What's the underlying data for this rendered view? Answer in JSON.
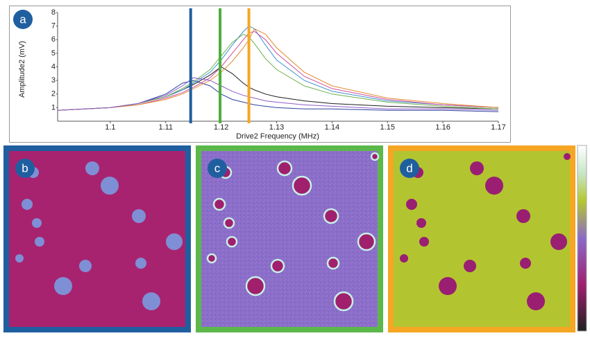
{
  "chart_data": {
    "type": "line",
    "panel_label": "a",
    "x_label": "Drive2 Frequency (MHz)",
    "y_label": "Amplitude2 (mV)",
    "xlim": [
      1.0905,
      1.17
    ],
    "ylim": [
      0,
      8
    ],
    "xticks": [
      1.1,
      1.11,
      1.12,
      1.13,
      1.14,
      1.15,
      1.16,
      1.17
    ],
    "yticks": [
      1,
      2,
      3,
      4,
      5,
      6,
      7,
      8
    ],
    "x": [
      1.0905,
      1.1,
      1.105,
      1.11,
      1.113,
      1.115,
      1.118,
      1.12,
      1.122,
      1.124,
      1.125,
      1.126,
      1.128,
      1.13,
      1.135,
      1.14,
      1.15,
      1.16,
      1.17
    ],
    "series": [
      {
        "color": "#2b3f9e",
        "values": [
          0.8,
          1.0,
          1.3,
          2.0,
          2.8,
          3.0,
          2.6,
          2.0,
          1.6,
          1.4,
          1.3,
          1.2,
          1.1,
          1.0,
          0.9,
          0.9,
          0.8,
          0.8,
          0.7
        ]
      },
      {
        "color": "#1b1b1b",
        "values": [
          0.8,
          1.0,
          1.3,
          1.8,
          2.3,
          2.7,
          3.4,
          4.0,
          3.5,
          2.8,
          2.5,
          2.3,
          2.0,
          1.8,
          1.5,
          1.3,
          1.1,
          1.0,
          0.9
        ]
      },
      {
        "color": "#3a8fd0",
        "values": [
          0.8,
          1.0,
          1.3,
          1.8,
          2.3,
          2.8,
          3.6,
          4.5,
          5.6,
          6.6,
          7.0,
          6.8,
          5.6,
          4.5,
          3.0,
          2.2,
          1.5,
          1.2,
          1.0
        ]
      },
      {
        "color": "#d04a9a",
        "values": [
          0.8,
          1.0,
          1.2,
          1.7,
          2.1,
          2.5,
          3.2,
          4.0,
          5.0,
          6.0,
          6.5,
          6.6,
          6.0,
          5.0,
          3.3,
          2.4,
          1.6,
          1.2,
          1.0
        ]
      },
      {
        "color": "#6ab04c",
        "values": [
          0.8,
          1.0,
          1.3,
          1.8,
          2.4,
          2.9,
          3.8,
          4.8,
          5.8,
          6.4,
          6.2,
          5.7,
          4.6,
          3.8,
          2.6,
          2.0,
          1.4,
          1.1,
          0.9
        ]
      },
      {
        "color": "#e08a2e",
        "values": [
          0.8,
          1.0,
          1.2,
          1.6,
          2.0,
          2.4,
          3.0,
          3.6,
          4.4,
          5.4,
          6.0,
          6.8,
          6.4,
          5.4,
          3.6,
          2.6,
          1.7,
          1.3,
          1.0
        ]
      },
      {
        "color": "#8c5ac8",
        "values": [
          0.8,
          1.0,
          1.3,
          1.9,
          2.6,
          3.2,
          3.0,
          2.6,
          2.2,
          1.9,
          1.8,
          1.7,
          1.5,
          1.4,
          1.2,
          1.1,
          0.9,
          0.9,
          0.8
        ]
      }
    ],
    "markers": [
      {
        "x": 1.1145,
        "color": "#1f5fa0"
      },
      {
        "x": 1.1198,
        "color": "#4caf3a"
      },
      {
        "x": 1.125,
        "color": "#f5a623"
      }
    ]
  },
  "panels": [
    {
      "label": "b",
      "color": "#1f5fa0"
    },
    {
      "label": "c",
      "color": "#5cb84a"
    },
    {
      "label": "d",
      "color": "#f5a623"
    }
  ]
}
